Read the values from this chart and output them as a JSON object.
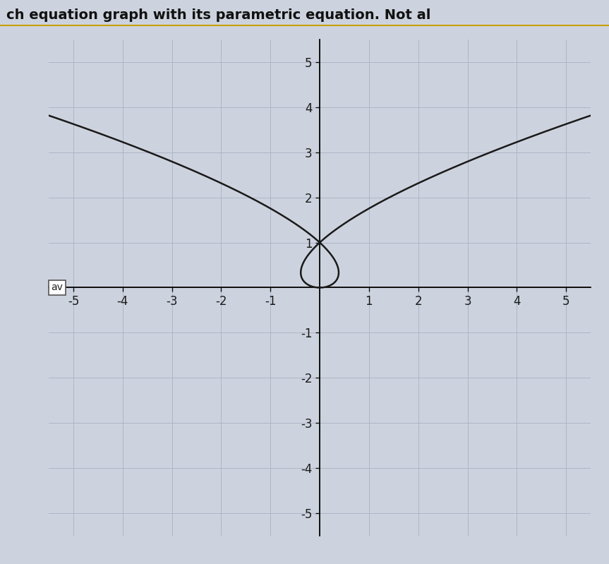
{
  "title": "ch equation graph with its parametric equation. Not al",
  "xlim": [
    -5.5,
    5.5
  ],
  "ylim": [
    -5.5,
    5.5
  ],
  "xticks": [
    -5,
    -4,
    -3,
    -2,
    -1,
    1,
    2,
    3,
    4,
    5
  ],
  "yticks": [
    -5,
    -4,
    -3,
    -2,
    -1,
    1,
    2,
    3,
    4,
    5
  ],
  "curve_color": "#1a1a1a",
  "curve_linewidth": 1.8,
  "background_color": "#cdd3de",
  "axes_color": "#111111",
  "grid_color": "#adb5c8",
  "t_min": -2.45,
  "t_max": 2.45,
  "t_points": 3000,
  "label_fontsize": 12,
  "fig_width": 8.63,
  "fig_height": 7.99,
  "dpi": 100
}
